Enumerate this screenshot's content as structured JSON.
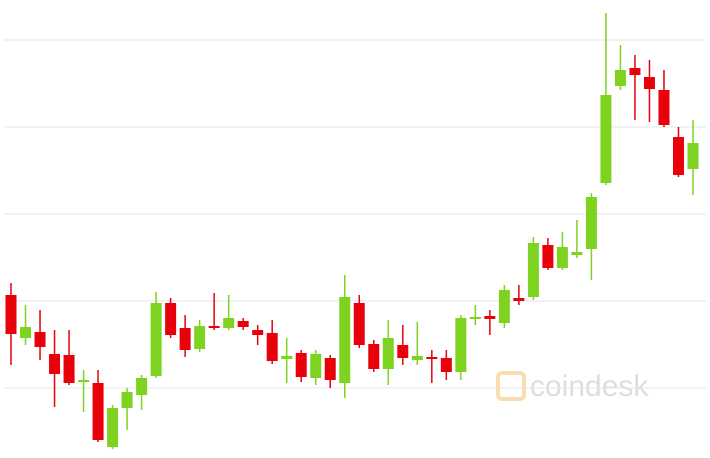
{
  "chart_data": {
    "type": "candlestick",
    "ylim": [
      0,
      458
    ],
    "yticks": [
      70,
      157,
      244,
      331,
      418
    ],
    "grid": true,
    "up_color": "#7ed321",
    "down_color": "#e8000b",
    "watermark": "coindesk",
    "open": [
      163,
      120,
      126,
      104,
      103,
      76,
      75,
      11,
      50,
      63,
      82,
      155,
      130,
      109,
      132,
      130,
      137,
      128,
      125,
      99,
      105,
      80,
      100,
      75,
      155,
      114,
      89,
      113,
      98,
      101,
      100,
      86,
      139,
      142,
      135,
      160,
      161,
      213,
      190,
      203,
      209,
      275,
      372,
      390,
      381,
      368,
      321,
      289
    ],
    "high": [
      175,
      153,
      148,
      128,
      128,
      88,
      88,
      53,
      70,
      83,
      166,
      160,
      143,
      138,
      165,
      163,
      140,
      133,
      138,
      120,
      108,
      108,
      103,
      183,
      163,
      118,
      138,
      133,
      136,
      108,
      108,
      143,
      153,
      148,
      173,
      173,
      221,
      220,
      226,
      238,
      265,
      445,
      413,
      403,
      398,
      388,
      331,
      338
    ],
    "low": [
      93,
      113,
      98,
      51,
      73,
      46,
      16,
      9,
      28,
      48,
      80,
      120,
      101,
      106,
      128,
      128,
      128,
      113,
      94,
      75,
      76,
      73,
      70,
      60,
      110,
      86,
      73,
      93,
      93,
      75,
      78,
      78,
      133,
      123,
      130,
      153,
      158,
      188,
      188,
      200,
      178,
      273,
      368,
      338,
      336,
      331,
      281,
      263
    ],
    "close": [
      124,
      131,
      111,
      84,
      75,
      78,
      18,
      50,
      66,
      80,
      155,
      123,
      108,
      132,
      130,
      140,
      131,
      123,
      97,
      102,
      81,
      104,
      78,
      161,
      113,
      89,
      120,
      100,
      102,
      99,
      86,
      140,
      141,
      139,
      168,
      157,
      215,
      190,
      211,
      206,
      261,
      363,
      388,
      383,
      369,
      333,
      283,
      315
    ]
  }
}
